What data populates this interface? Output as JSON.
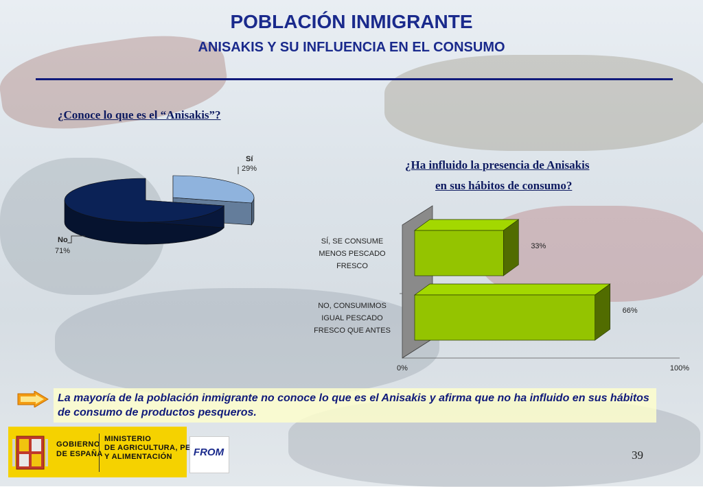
{
  "header": {
    "title": "POBLACIÓN INMIGRANTE",
    "subtitle": "ANISAKIS Y SU INFLUENCIA EN EL CONSUMO"
  },
  "questions": {
    "q1": "¿Conoce lo que es el “Anisakis”?",
    "q2_line1": "¿Ha influido la presencia de Anisakis",
    "q2_line2": "en sus hábitos de consumo?"
  },
  "chart_data": [
    {
      "type": "pie",
      "title": "¿Conoce lo que es el “Anisakis”?",
      "categories": [
        "Sí",
        "No"
      ],
      "values": [
        29,
        71
      ],
      "labels": [
        "29%",
        "71%"
      ],
      "colors": [
        "#8fb3dd",
        "#0b2256"
      ]
    },
    {
      "type": "bar",
      "orientation": "horizontal",
      "title": "¿Ha influido la presencia de Anisakis en sus hábitos de consumo?",
      "categories": [
        [
          "SÍ, SE CONSUME",
          "MENOS PESCADO",
          "FRESCO"
        ],
        [
          "NO, CONSUMIMOS",
          "IGUAL PESCADO",
          "FRESCO QUE ANTES"
        ]
      ],
      "values": [
        33,
        66
      ],
      "value_labels": [
        "33%",
        "66%"
      ],
      "xlim": [
        0,
        100
      ],
      "xticks": [
        "0%",
        "100%"
      ],
      "color": "#94c400"
    }
  ],
  "summary": "La mayoría de la población inmigrante no conoce lo que es el Anisakis y afirma que no ha influido en sus hábitos de consumo de productos pesqueros.",
  "footer": {
    "gobierno_line1": "GOBIERNO",
    "gobierno_line2": "DE ESPAÑA",
    "ministerio_line1": "MINISTERIO",
    "ministerio_line2": "DE AGRICULTURA, PESCA",
    "ministerio_line3": "Y ALIMENTACIÓN",
    "logo_text": "FROM"
  },
  "page_number": "39"
}
